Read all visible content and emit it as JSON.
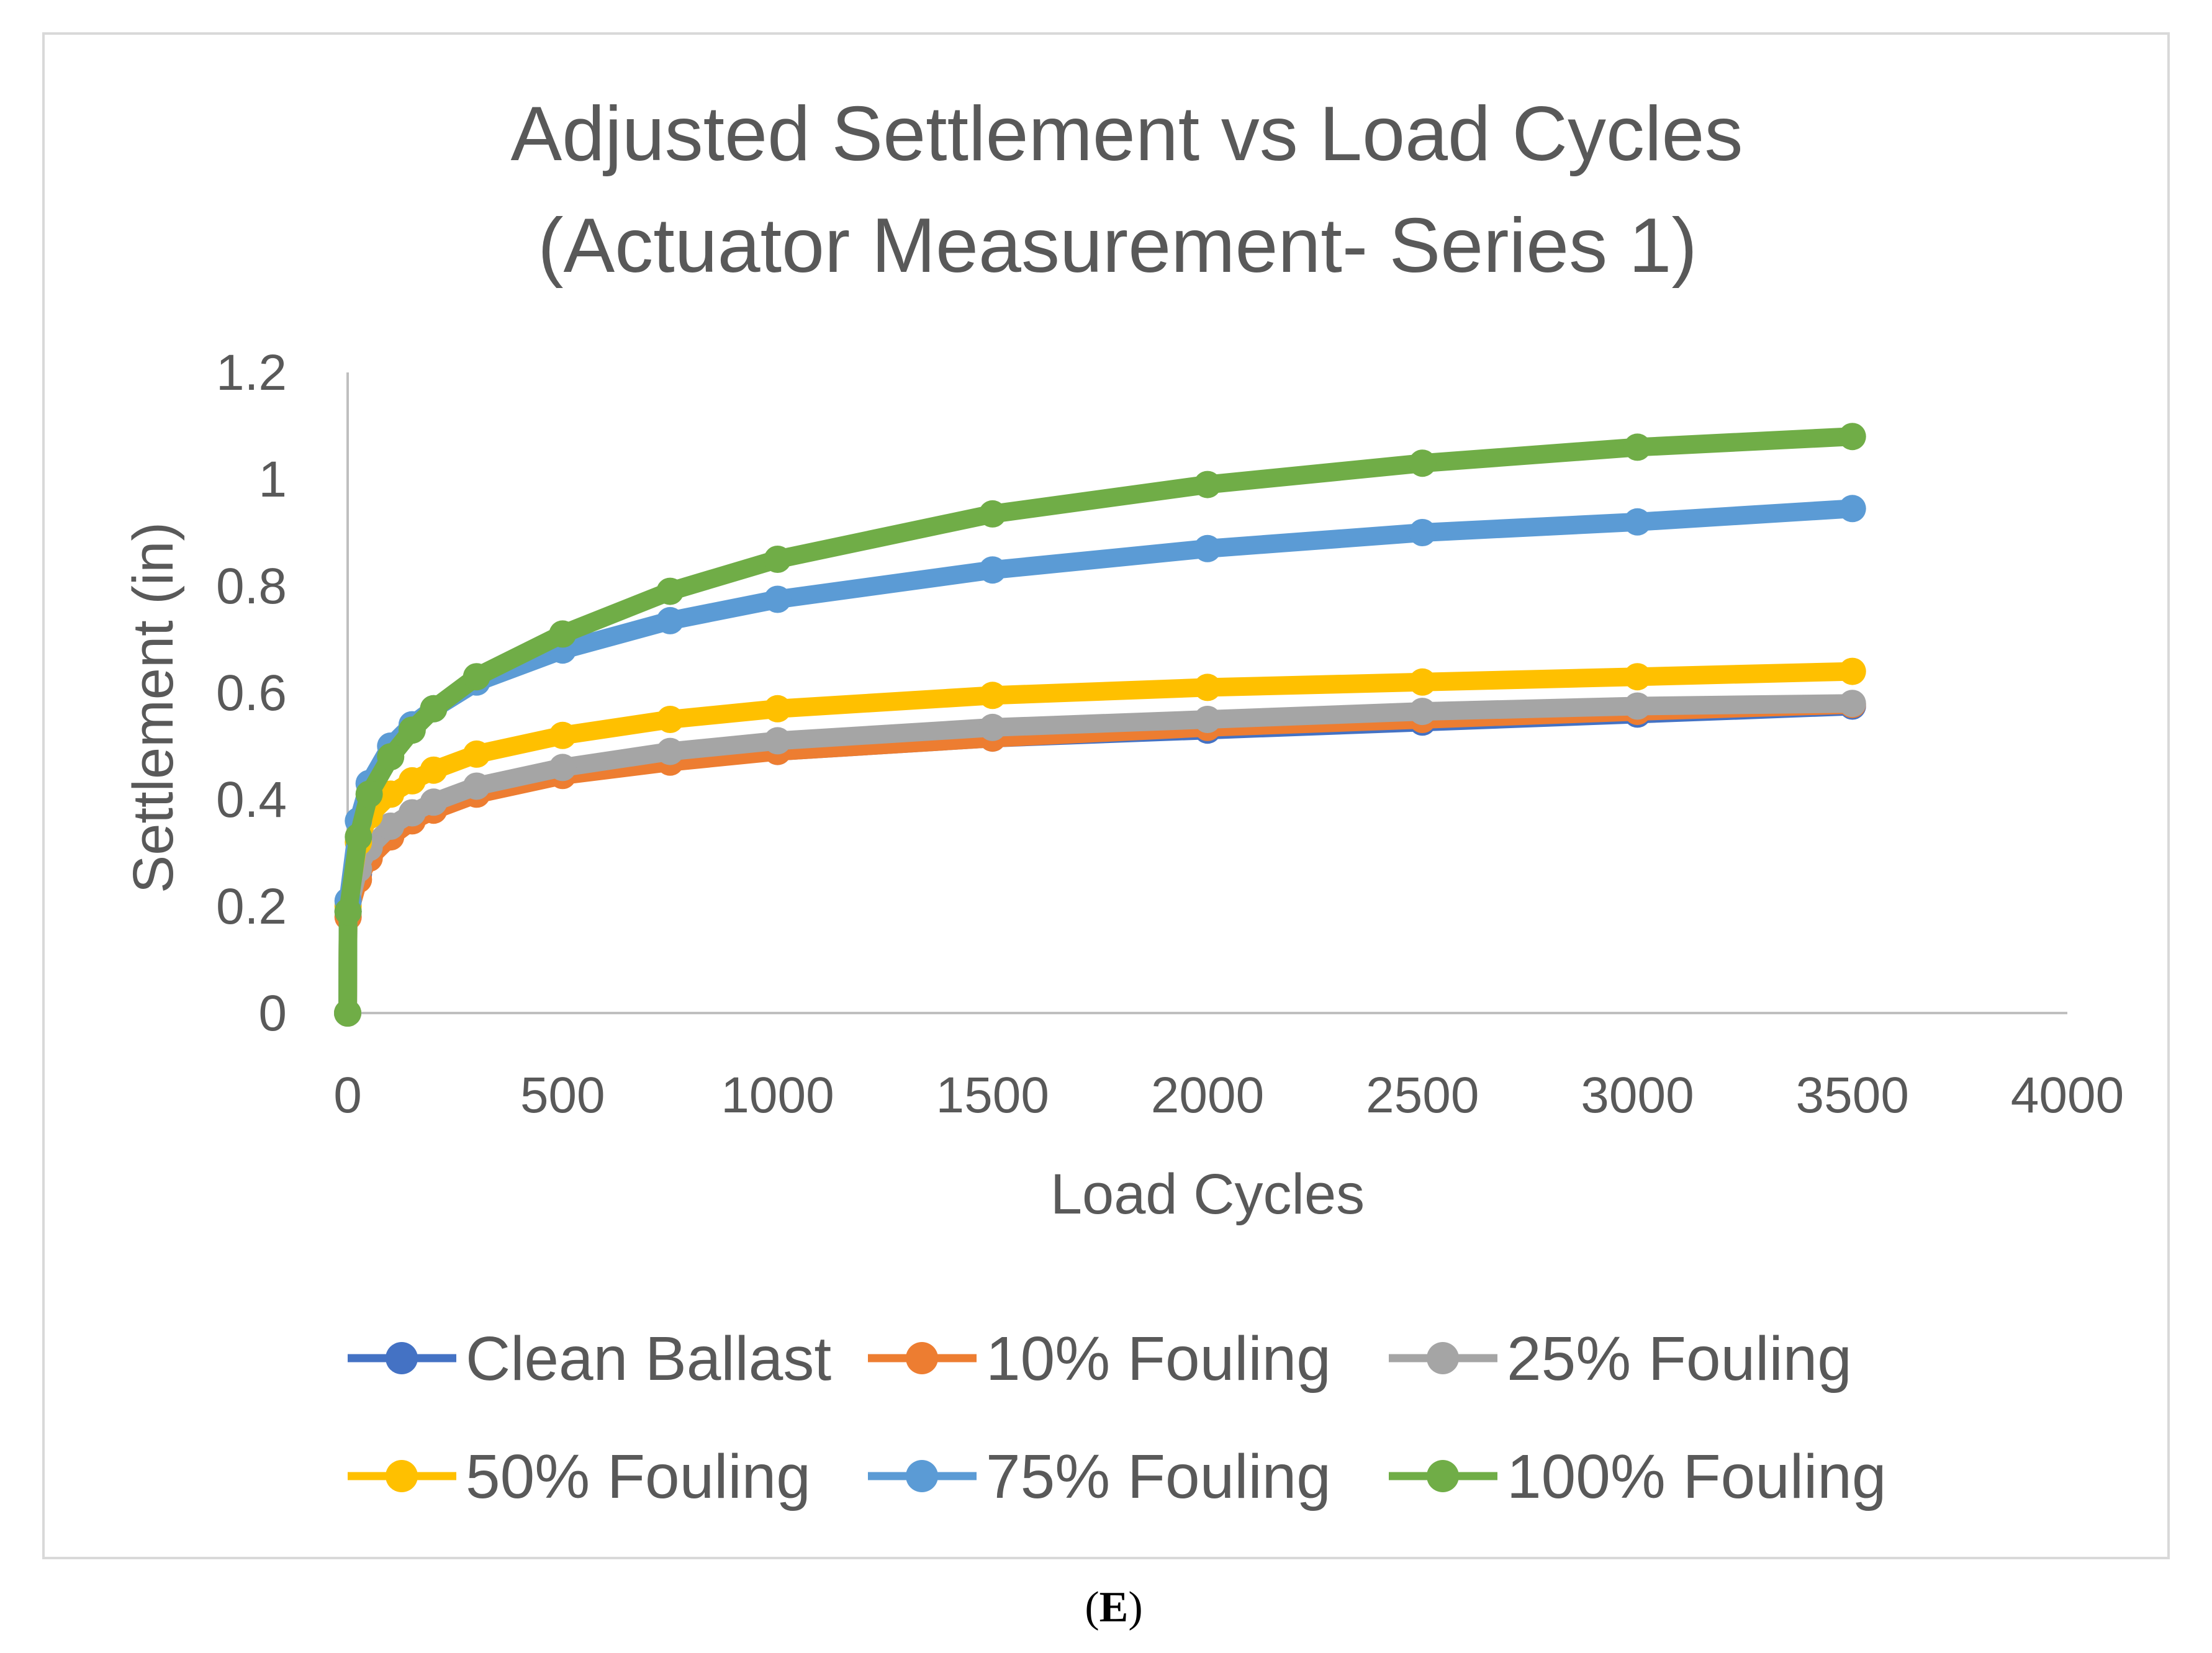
{
  "chart_data": {
    "type": "line",
    "title_lines": [
      "Adjusted Settlement vs Load Cycles",
      "(Actuator Measurement- Series 1)"
    ],
    "xlabel": "Load Cycles",
    "ylabel": "Settlement (in)",
    "xlim": [
      0,
      4000
    ],
    "ylim": [
      0,
      1.2
    ],
    "x_ticks": [
      "0",
      "500",
      "1000",
      "1500",
      "2000",
      "2500",
      "3000",
      "3500",
      "4000"
    ],
    "y_ticks": [
      "0",
      "0.2",
      "0.4",
      "0.6",
      "0.8",
      "1",
      "1.2"
    ],
    "grid": false,
    "legend_position": "bottom",
    "x": [
      0,
      1,
      25,
      50,
      100,
      150,
      200,
      300,
      500,
      750,
      1000,
      1500,
      2000,
      2500,
      3000,
      3500
    ],
    "series": [
      {
        "name": "Clean Ballast",
        "color": "#4472C4",
        "values": [
          0,
          0.19,
          0.26,
          0.3,
          0.34,
          0.37,
          0.39,
          0.42,
          0.45,
          0.475,
          0.49,
          0.515,
          0.53,
          0.545,
          0.56,
          0.575
        ]
      },
      {
        "name": "10% Fouling",
        "color": "#ED7D31",
        "values": [
          0,
          0.18,
          0.25,
          0.29,
          0.33,
          0.36,
          0.38,
          0.41,
          0.445,
          0.47,
          0.49,
          0.515,
          0.535,
          0.55,
          0.565,
          0.578
        ]
      },
      {
        "name": "25% Fouling",
        "color": "#A5A5A5",
        "values": [
          0,
          0.19,
          0.27,
          0.31,
          0.35,
          0.375,
          0.395,
          0.425,
          0.46,
          0.49,
          0.51,
          0.535,
          0.55,
          0.565,
          0.575,
          0.58
        ]
      },
      {
        "name": "50% Fouling",
        "color": "#FFC000",
        "values": [
          0,
          0.2,
          0.32,
          0.37,
          0.41,
          0.435,
          0.455,
          0.485,
          0.52,
          0.55,
          0.57,
          0.595,
          0.61,
          0.62,
          0.63,
          0.64
        ]
      },
      {
        "name": "75% Fouling",
        "color": "#5B9BD5",
        "values": [
          0,
          0.21,
          0.36,
          0.43,
          0.5,
          0.54,
          0.57,
          0.62,
          0.68,
          0.735,
          0.775,
          0.83,
          0.87,
          0.9,
          0.92,
          0.945
        ]
      },
      {
        "name": "100% Fouling",
        "color": "#70AD47",
        "values": [
          0,
          0.19,
          0.33,
          0.41,
          0.48,
          0.53,
          0.57,
          0.63,
          0.71,
          0.79,
          0.85,
          0.935,
          0.99,
          1.03,
          1.06,
          1.08
        ]
      }
    ]
  },
  "caption": {
    "open": "(",
    "letter": "E",
    "close": ")"
  }
}
